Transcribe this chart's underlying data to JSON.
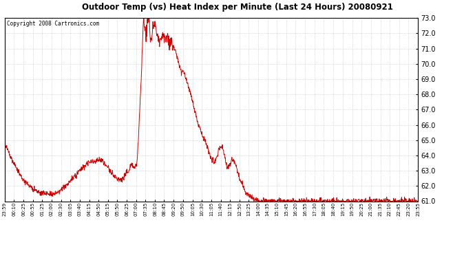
{
  "title": "Outdoor Temp (vs) Heat Index per Minute (Last 24 Hours) 20080921",
  "copyright": "Copyright 2008 Cartronics.com",
  "ylim": [
    61.0,
    73.0
  ],
  "yticks": [
    61.0,
    62.0,
    63.0,
    64.0,
    65.0,
    66.0,
    67.0,
    68.0,
    69.0,
    70.0,
    71.0,
    72.0,
    73.0
  ],
  "ytick_labels": [
    "61.0",
    "62.0",
    "63.0",
    "64.0",
    "65.0",
    "66.0",
    "67.0",
    "68.0",
    "69.0",
    "70.0",
    "71.0",
    "72.0",
    "73.0"
  ],
  "line_color": "#cc0000",
  "bg_color": "#ffffff",
  "grid_color": "#bbbbbb",
  "xtick_labels": [
    "23:59",
    "00:10",
    "00:25",
    "00:55",
    "01:25",
    "02:00",
    "02:30",
    "03:05",
    "03:40",
    "04:15",
    "04:50",
    "05:15",
    "05:50",
    "06:25",
    "07:00",
    "07:35",
    "08:10",
    "08:45",
    "09:20",
    "09:50",
    "10:05",
    "10:30",
    "11:05",
    "11:40",
    "12:15",
    "12:50",
    "13:25",
    "14:00",
    "14:35",
    "15:10",
    "15:45",
    "16:20",
    "16:55",
    "17:30",
    "18:05",
    "18:40",
    "19:15",
    "19:50",
    "20:25",
    "21:00",
    "21:35",
    "22:10",
    "22:45",
    "23:20",
    "23:55"
  ],
  "waypoints": [
    [
      0,
      64.8
    ],
    [
      5,
      64.6
    ],
    [
      15,
      64.2
    ],
    [
      25,
      63.8
    ],
    [
      40,
      63.2
    ],
    [
      60,
      62.5
    ],
    [
      80,
      62.1
    ],
    [
      100,
      61.8
    ],
    [
      120,
      61.6
    ],
    [
      150,
      61.5
    ],
    [
      170,
      61.5
    ],
    [
      190,
      61.6
    ],
    [
      210,
      62.0
    ],
    [
      230,
      62.4
    ],
    [
      250,
      62.8
    ],
    [
      270,
      63.2
    ],
    [
      290,
      63.5
    ],
    [
      310,
      63.6
    ],
    [
      325,
      63.7
    ],
    [
      335,
      63.7
    ],
    [
      345,
      63.5
    ],
    [
      360,
      63.2
    ],
    [
      375,
      62.8
    ],
    [
      390,
      62.5
    ],
    [
      405,
      62.4
    ],
    [
      415,
      62.5
    ],
    [
      420,
      62.8
    ],
    [
      425,
      63.0
    ],
    [
      430,
      62.9
    ],
    [
      435,
      63.2
    ],
    [
      440,
      63.5
    ],
    [
      445,
      63.3
    ],
    [
      450,
      63.2
    ],
    [
      455,
      63.3
    ],
    [
      460,
      63.5
    ],
    [
      465,
      65.0
    ],
    [
      470,
      67.0
    ],
    [
      475,
      69.0
    ],
    [
      478,
      70.5
    ],
    [
      480,
      71.5
    ],
    [
      482,
      72.5
    ],
    [
      484,
      73.1
    ],
    [
      486,
      72.8
    ],
    [
      488,
      72.5
    ],
    [
      490,
      72.0
    ],
    [
      492,
      71.8
    ],
    [
      494,
      72.2
    ],
    [
      496,
      72.8
    ],
    [
      498,
      73.1
    ],
    [
      500,
      73.2
    ],
    [
      502,
      73.0
    ],
    [
      504,
      72.5
    ],
    [
      506,
      72.0
    ],
    [
      508,
      71.8
    ],
    [
      510,
      71.6
    ],
    [
      512,
      71.8
    ],
    [
      514,
      72.0
    ],
    [
      516,
      72.3
    ],
    [
      518,
      72.5
    ],
    [
      520,
      72.6
    ],
    [
      522,
      72.8
    ],
    [
      524,
      72.6
    ],
    [
      526,
      72.4
    ],
    [
      528,
      72.2
    ],
    [
      530,
      72.0
    ],
    [
      535,
      71.8
    ],
    [
      540,
      71.6
    ],
    [
      545,
      71.8
    ],
    [
      550,
      72.0
    ],
    [
      555,
      71.8
    ],
    [
      560,
      71.6
    ],
    [
      565,
      71.8
    ],
    [
      570,
      71.6
    ],
    [
      575,
      71.5
    ],
    [
      580,
      71.3
    ],
    [
      585,
      71.2
    ],
    [
      590,
      71.0
    ],
    [
      595,
      70.8
    ],
    [
      600,
      70.5
    ],
    [
      605,
      70.2
    ],
    [
      610,
      69.8
    ],
    [
      615,
      69.5
    ],
    [
      618,
      69.4
    ],
    [
      622,
      69.5
    ],
    [
      626,
      69.3
    ],
    [
      630,
      69.0
    ],
    [
      635,
      68.8
    ],
    [
      640,
      68.5
    ],
    [
      645,
      68.2
    ],
    [
      650,
      67.8
    ],
    [
      655,
      67.5
    ],
    [
      660,
      67.0
    ],
    [
      665,
      66.6
    ],
    [
      670,
      66.3
    ],
    [
      675,
      66.0
    ],
    [
      680,
      65.8
    ],
    [
      685,
      65.5
    ],
    [
      690,
      65.2
    ],
    [
      695,
      65.0
    ],
    [
      700,
      64.8
    ],
    [
      705,
      64.5
    ],
    [
      710,
      64.3
    ],
    [
      715,
      64.0
    ],
    [
      720,
      63.8
    ],
    [
      725,
      63.7
    ],
    [
      730,
      63.6
    ],
    [
      735,
      63.8
    ],
    [
      740,
      64.0
    ],
    [
      745,
      64.3
    ],
    [
      750,
      64.5
    ],
    [
      755,
      64.6
    ],
    [
      760,
      64.4
    ],
    [
      765,
      64.0
    ],
    [
      770,
      63.5
    ],
    [
      775,
      63.2
    ],
    [
      780,
      63.3
    ],
    [
      785,
      63.5
    ],
    [
      790,
      63.7
    ],
    [
      795,
      63.8
    ],
    [
      800,
      63.6
    ],
    [
      805,
      63.3
    ],
    [
      810,
      63.0
    ],
    [
      815,
      62.7
    ],
    [
      820,
      62.4
    ],
    [
      825,
      62.2
    ],
    [
      830,
      62.0
    ],
    [
      835,
      61.8
    ],
    [
      840,
      61.6
    ],
    [
      850,
      61.4
    ],
    [
      860,
      61.2
    ],
    [
      870,
      61.1
    ],
    [
      880,
      61.0
    ],
    [
      1440,
      61.0
    ]
  ]
}
